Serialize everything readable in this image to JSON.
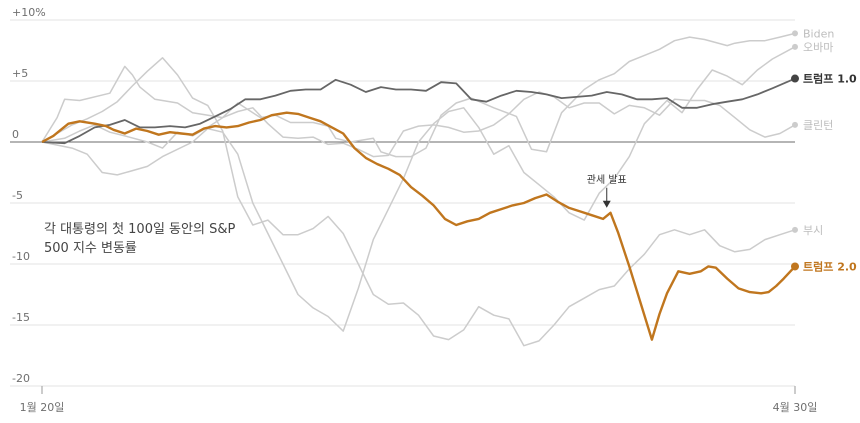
{
  "chart_data": {
    "type": "line",
    "subtitle_lines": [
      "각 대통령의 첫 100일 동안의 S&P",
      "500 지수 변동률"
    ],
    "ylim": [
      -20,
      10
    ],
    "yticks": [
      10,
      5,
      0,
      -5,
      -10,
      -15,
      -20
    ],
    "ytick_labels": [
      "+10%",
      "+5",
      "0",
      "-5",
      "-10",
      "-15",
      "-20"
    ],
    "x_tick_labels": {
      "start": "1월 20일",
      "end": "4월 30일"
    },
    "xlim": [
      0,
      100
    ],
    "grid": true,
    "annotation": {
      "text": "관세 발표",
      "x": 75,
      "y": -5.8
    },
    "colors": {
      "highlight": "#c0761e",
      "dark": "#666666",
      "muted": "#cccccc"
    },
    "series": [
      {
        "name": "Biden",
        "style": "gray",
        "x": [
          0,
          2,
          3,
          5,
          9,
          11,
          12,
          13,
          15,
          18,
          20,
          24,
          26,
          29,
          31,
          33,
          36,
          38,
          39,
          41,
          44,
          45,
          47,
          49,
          51,
          53,
          55,
          57,
          60,
          63,
          65,
          67,
          69,
          72,
          74,
          76,
          78,
          80,
          82,
          84,
          86,
          88,
          91,
          92,
          94,
          96,
          98,
          100
        ],
        "y": [
          0,
          2,
          3.5,
          3.4,
          4,
          6.2,
          5.5,
          4.5,
          3.5,
          3.2,
          2.4,
          2,
          3.2,
          2,
          2.2,
          1.6,
          1.6,
          1.3,
          0.3,
          0,
          0.3,
          -0.8,
          -1.2,
          -1.2,
          -0.5,
          2.2,
          3.2,
          3.6,
          2.8,
          2.1,
          -0.6,
          -0.8,
          2.4,
          4.3,
          5.1,
          5.6,
          6.6,
          7.1,
          7.6,
          8.3,
          8.6,
          8.4,
          7.9,
          8.1,
          8.3,
          8.3,
          8.6,
          8.9
        ]
      },
      {
        "name": "오바마",
        "style": "gray",
        "x": [
          0,
          4,
          6,
          8,
          10,
          14,
          16,
          20,
          22,
          24,
          26,
          28,
          30,
          32,
          34,
          36,
          38,
          40,
          42,
          44,
          46,
          48,
          50,
          52,
          54,
          56,
          58,
          60,
          62,
          64,
          66,
          68,
          70,
          72,
          74,
          76,
          78,
          80,
          83,
          85,
          87,
          89,
          91,
          93,
          95,
          97,
          100
        ],
        "y": [
          0,
          -0.5,
          -1,
          -2.5,
          -2.7,
          -2,
          -1.2,
          0,
          1.1,
          0.8,
          -1,
          -5,
          -7.5,
          -10,
          -12.5,
          -13.6,
          -14.3,
          -15.5,
          -12,
          -8,
          -5.5,
          -3,
          0,
          1.5,
          2.5,
          2.8,
          1.2,
          -1,
          -0.3,
          -2.5,
          -3.5,
          -4.5,
          -5.8,
          -6.4,
          -4.2,
          -3,
          -1.2,
          1.5,
          3.4,
          2.4,
          4.3,
          5.9,
          5.4,
          4.7,
          5.9,
          6.8,
          7.8
        ]
      },
      {
        "name": "클린턴",
        "style": "gray",
        "x": [
          0,
          3,
          5,
          7,
          9,
          11,
          14,
          16,
          18,
          20,
          22,
          24,
          26,
          28,
          30,
          32,
          34,
          36,
          38,
          40,
          42,
          44,
          46,
          48,
          50,
          52,
          54,
          56,
          58,
          60,
          62,
          64,
          66,
          68,
          70,
          72,
          74,
          76,
          78,
          80,
          82,
          84,
          86,
          88,
          90,
          92,
          94,
          96,
          98,
          100
        ],
        "y": [
          0,
          0.3,
          0.9,
          1.4,
          0.8,
          0.5,
          0,
          -0.5,
          0.8,
          0.5,
          1.2,
          2,
          2.5,
          2.8,
          1.5,
          0.4,
          0.3,
          0.4,
          -0.2,
          -0.1,
          -0.6,
          -1.2,
          -1.1,
          0.9,
          1.3,
          1.4,
          1.2,
          0.8,
          0.9,
          1.4,
          2.3,
          3.5,
          4.1,
          3.7,
          2.8,
          3.2,
          3.2,
          2.3,
          3,
          2.8,
          2.2,
          3.5,
          3.4,
          3.4,
          3,
          2,
          1,
          0.4,
          0.7,
          1.4
        ]
      },
      {
        "name": "부시",
        "style": "gray",
        "x": [
          0,
          2,
          4,
          6,
          8,
          10,
          12,
          14,
          16,
          18,
          20,
          22,
          24,
          26,
          28,
          30,
          32,
          34,
          36,
          38,
          40,
          42,
          44,
          46,
          48,
          50,
          52,
          54,
          56,
          58,
          60,
          62,
          64,
          66,
          68,
          70,
          72,
          74,
          76,
          78,
          80,
          82,
          84,
          86,
          88,
          90,
          92,
          94,
          96,
          98,
          100
        ],
        "y": [
          0,
          0.7,
          1.4,
          1.9,
          2.5,
          3.3,
          4.6,
          5.8,
          6.9,
          5.5,
          3.6,
          3,
          0.9,
          -4.5,
          -6.8,
          -6.4,
          -7.6,
          -7.6,
          -7.1,
          -6.1,
          -7.5,
          -10,
          -12.5,
          -13.3,
          -13.2,
          -14.2,
          -15.9,
          -16.2,
          -15.4,
          -13.5,
          -14.2,
          -14.5,
          -16.7,
          -16.3,
          -15,
          -13.5,
          -12.8,
          -12.1,
          -11.8,
          -10.4,
          -9.2,
          -7.6,
          -7.2,
          -7.6,
          -7.2,
          -8.5,
          -9,
          -8.8,
          -8,
          -7.6,
          -7.2
        ]
      },
      {
        "name": "트럼프 1.0",
        "style": "dark",
        "x": [
          0,
          3,
          5,
          7,
          9,
          11,
          13,
          15,
          17,
          19,
          21,
          23,
          25,
          27,
          29,
          31,
          33,
          35,
          37,
          39,
          41,
          43,
          45,
          47,
          49,
          51,
          53,
          55,
          57,
          59,
          61,
          63,
          65,
          67,
          69,
          71,
          73,
          75,
          77,
          79,
          81,
          83,
          85,
          87,
          89,
          91,
          93,
          95,
          97,
          100
        ],
        "y": [
          0,
          -0.1,
          0.5,
          1.2,
          1.4,
          1.8,
          1.2,
          1.2,
          1.3,
          1.2,
          1.5,
          2.1,
          2.7,
          3.5,
          3.5,
          3.8,
          4.2,
          4.3,
          4.3,
          5.1,
          4.7,
          4.1,
          4.5,
          4.3,
          4.3,
          4.2,
          4.9,
          4.8,
          3.5,
          3.3,
          3.8,
          4.2,
          4.1,
          3.9,
          3.6,
          3.7,
          3.8,
          4.1,
          3.9,
          3.5,
          3.5,
          3.6,
          2.8,
          2.8,
          3.1,
          3.3,
          3.5,
          3.9,
          4.4,
          5.2
        ]
      },
      {
        "name": "트럼프 2.0",
        "style": "orange",
        "x": [
          0,
          1.5,
          2.5,
          3.5,
          5,
          7,
          8.5,
          9.5,
          11,
          12.5,
          14,
          15.5,
          17,
          18.5,
          20,
          21.5,
          23,
          24.5,
          26,
          27.5,
          29,
          30.5,
          31.5,
          32.5,
          34,
          35.5,
          37,
          38.5,
          40,
          41.5,
          43,
          44.5,
          46,
          47.5,
          49,
          50.5,
          52,
          53.5,
          55,
          56.5,
          58,
          59.5,
          61,
          62.5,
          64,
          65.5,
          67,
          68.5,
          70,
          71.5,
          73,
          74.5,
          75.5,
          76.5,
          78,
          79.5,
          81,
          82,
          83,
          84.5,
          86,
          87.5,
          88.5,
          89.5,
          91,
          92.5,
          94,
          95.5,
          96.5,
          97.5,
          98.5,
          100
        ],
        "y": [
          0,
          0.5,
          1,
          1.5,
          1.7,
          1.5,
          1.3,
          1,
          0.7,
          1.1,
          0.9,
          0.6,
          0.8,
          0.7,
          0.6,
          1.1,
          1.3,
          1.2,
          1.3,
          1.6,
          1.8,
          2.2,
          2.3,
          2.4,
          2.3,
          2.0,
          1.7,
          1.2,
          0.7,
          -0.5,
          -1.3,
          -1.8,
          -2.2,
          -2.7,
          -3.7,
          -4.4,
          -5.2,
          -6.3,
          -6.8,
          -6.5,
          -6.3,
          -5.8,
          -5.5,
          -5.2,
          -5,
          -4.6,
          -4.3,
          -4.9,
          -5.4,
          -5.7,
          -6,
          -6.3,
          -5.8,
          -7.4,
          -10.2,
          -13.2,
          -16.2,
          -14.1,
          -12.4,
          -10.6,
          -10.8,
          -10.6,
          -10.2,
          -10.3,
          -11.2,
          -12,
          -12.3,
          -12.4,
          -12.3,
          -11.8,
          -11.2,
          -10.2
        ]
      }
    ]
  }
}
